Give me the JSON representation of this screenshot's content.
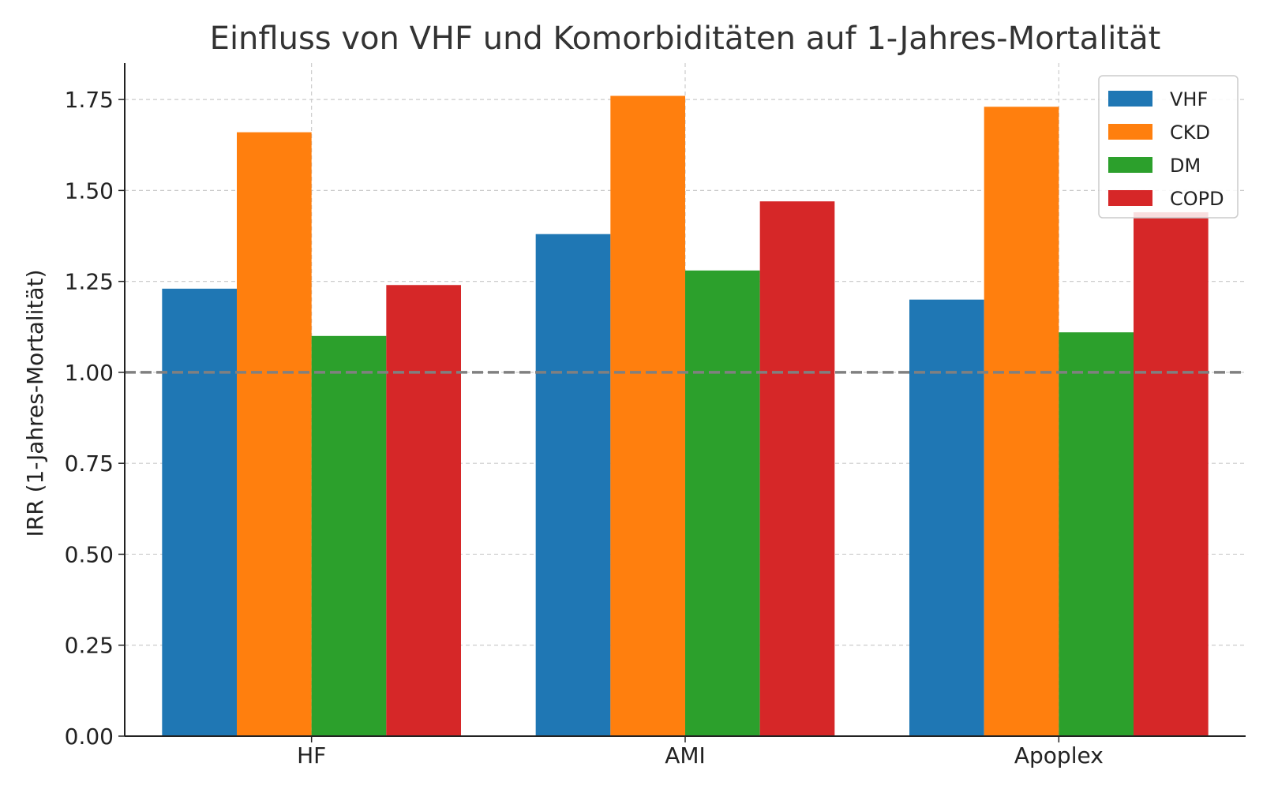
{
  "chart_data": {
    "type": "bar",
    "title": "Einfluss von VHF und Komorbiditäten auf 1-Jahres-Mortalität",
    "xlabel": "",
    "ylabel": "IRR (1-Jahres-Mortalität)",
    "categories": [
      "HF",
      "AMI",
      "Apoplex"
    ],
    "series": [
      {
        "name": "VHF",
        "values": [
          1.23,
          1.38,
          1.2
        ],
        "color": "#1f77b4"
      },
      {
        "name": "CKD",
        "values": [
          1.66,
          1.76,
          1.73
        ],
        "color": "#ff7f0e"
      },
      {
        "name": "DM",
        "values": [
          1.1,
          1.28,
          1.11
        ],
        "color": "#2ca02c"
      },
      {
        "name": "COPD",
        "values": [
          1.24,
          1.47,
          1.44
        ],
        "color": "#d62728"
      }
    ],
    "ylim": [
      0,
      1.85
    ],
    "yticks": [
      "0.00",
      "0.25",
      "0.50",
      "0.75",
      "1.00",
      "1.25",
      "1.50",
      "1.75"
    ],
    "reference_line": {
      "y": 1.0,
      "style": "dashed",
      "color": "#808080"
    },
    "grid": true,
    "legend_position": "top-right"
  }
}
